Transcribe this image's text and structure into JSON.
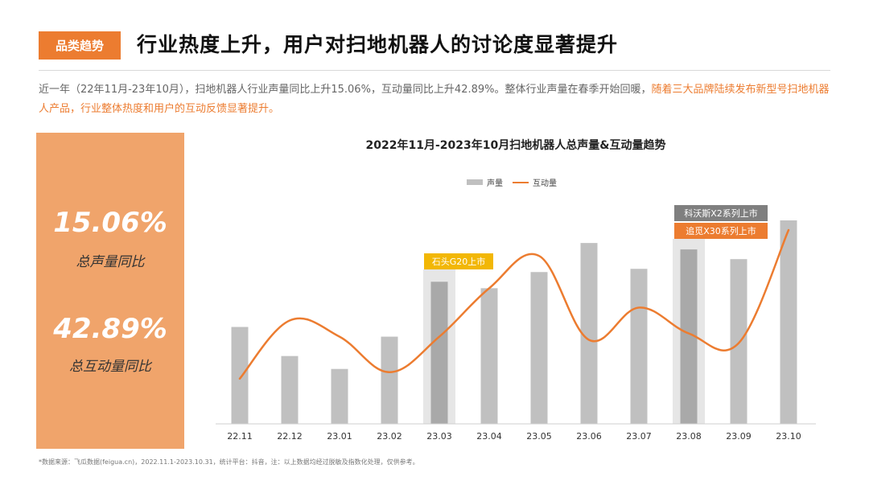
{
  "header": {
    "badge": "品类趋势",
    "title": "行业热度上升，用户对扫地机器人的讨论度显著提升"
  },
  "summary": {
    "text": "近一年（22年11月-23年10月），扫地机器人行业声量同比上升15.06%，互动量同比上升42.89%。整体行业声量在春季开始回暖，",
    "highlight": "随着三大品牌陆续发布新型号扫地机器人产品，行业整体热度和用户的互动反馈显著提升。"
  },
  "stats": [
    {
      "value": "15.06%",
      "label": "总声量同比"
    },
    {
      "value": "42.89%",
      "label": "总互动量同比"
    }
  ],
  "colors": {
    "accent": "#ec7c30",
    "bar": "#c0c0c0",
    "highlight_band": "#e6e6e6",
    "gold": "#f2b705",
    "gray_tag": "#7f7f7f"
  },
  "chart_data": {
    "type": "bar",
    "title": "2022年11月-2023年10月扫地机器人总声量&互动量趋势",
    "categories": [
      "22.11",
      "22.12",
      "23.01",
      "23.02",
      "23.03",
      "23.04",
      "23.05",
      "23.06",
      "23.07",
      "23.08",
      "23.09",
      "23.10"
    ],
    "series": [
      {
        "name": "声量",
        "kind": "bar",
        "values": [
          30,
          21,
          17,
          27,
          44,
          42,
          47,
          56,
          48,
          54,
          51,
          63
        ]
      },
      {
        "name": "互动量",
        "kind": "line",
        "values": [
          14,
          32,
          27,
          16,
          27,
          42,
          52,
          26,
          36,
          28,
          25,
          60
        ]
      }
    ],
    "ylim": [
      0,
      64
    ],
    "grid": false,
    "legend_position": "top-center",
    "annotations": [
      {
        "text": "石头G20上市",
        "category": "23.03",
        "color": "#f2b705"
      },
      {
        "text": "科沃斯X2系列上市",
        "category": "23.08",
        "color": "#7f7f7f"
      },
      {
        "text": "追觅X30系列上市",
        "category": "23.08",
        "color": "#ec7c30"
      }
    ]
  },
  "footnote": "*数据来源：飞瓜数据(feigua.cn)，2022.11.1-2023.10.31，统计平台：抖音，注：以上数据均经过脱敏及指数化处理，仅供参考。"
}
